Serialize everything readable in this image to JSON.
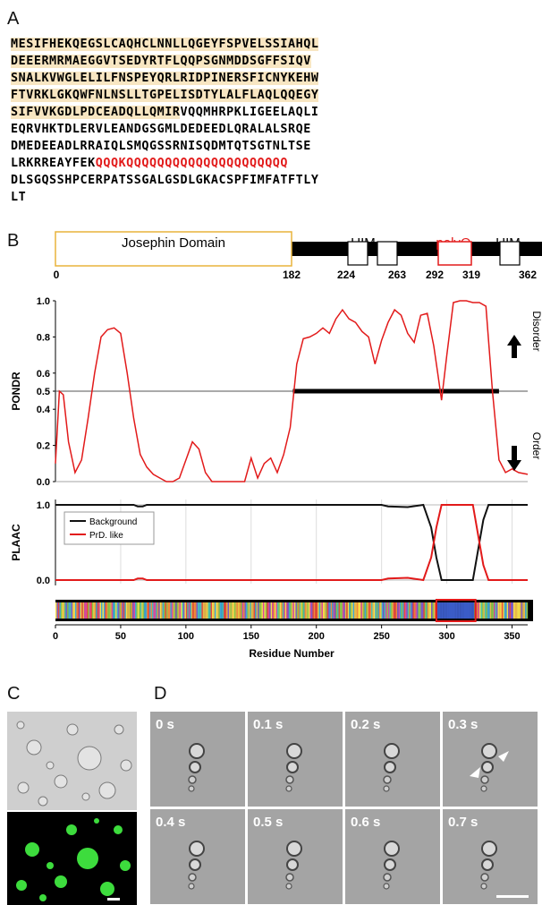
{
  "panels": {
    "a": "A",
    "b": "B",
    "c": "C",
    "d": "D"
  },
  "sequence": [
    {
      "segments": [
        {
          "text": "MESIFHEKQEGSLCAQHCLNNLLQGEYFSPVELSSIAHQL",
          "style": "hl"
        }
      ]
    },
    {
      "segments": [
        {
          "text": "DEEERMRMAEGGVTSEDYRTFLQQPSGNMDDSGFFSIQV",
          "style": "hl"
        }
      ]
    },
    {
      "segments": [
        {
          "text": "SNALKVWGLELILFNSPEYQRLRIDPINERSFICNYKEHW",
          "style": "hl"
        }
      ]
    },
    {
      "segments": [
        {
          "text": "FTVRKLGKQWFNLNSLLTGPELISDTYLALFLAQLQQEGY",
          "style": "hl"
        }
      ]
    },
    {
      "segments": [
        {
          "text": "SIFVVKGDLPDCEADQLLQMIR",
          "style": "hl"
        },
        {
          "text": "VQQMHRPKLIGEELAQLI",
          "style": ""
        }
      ]
    },
    {
      "segments": [
        {
          "text": "EQRVHKTDLERVLEANDGSGMLDEDEEDLQRALALSRQE",
          "style": ""
        }
      ]
    },
    {
      "segments": [
        {
          "text": "DMEDEEADLRRAIQLSMQGSSRNISQDMTQTSGTNLTSE",
          "style": ""
        }
      ]
    },
    {
      "segments": [
        {
          "text": "LRKRREAYFEK",
          "style": ""
        },
        {
          "text": "QQQKQQQQQQQQQQQQQQQQQQQQQ",
          "style": "red"
        }
      ]
    },
    {
      "segments": [
        {
          "text": "DLSGQSSHPCERPATSSGALGSDLGKACSPFIMFATFTLY",
          "style": ""
        }
      ]
    },
    {
      "segments": [
        {
          "text": "LT",
          "style": ""
        }
      ]
    }
  ],
  "domain_map": {
    "josephin_label": "Josephin Domain",
    "uim1_label": "UIM",
    "polyq_label": "polyQ",
    "uim2_label": "UIM",
    "positions": [
      "0",
      "182",
      "224",
      "263",
      "292",
      "319",
      "362"
    ]
  },
  "chart_data": [
    {
      "type": "line",
      "ylabel": "PONDR",
      "ylim": [
        0,
        1
      ],
      "yticks": [
        "0.0",
        "0.2",
        "0.4",
        "0.5",
        "0.6",
        "0.8",
        "1.0"
      ],
      "threshold": 0.5,
      "disorder_segment": [
        182,
        340
      ],
      "annotations": {
        "top": "Disorder",
        "bottom": "Order"
      },
      "series": [
        {
          "values_x": [
            0,
            3,
            6,
            10,
            15,
            20,
            25,
            30,
            35,
            40,
            45,
            50,
            55,
            60,
            65,
            70,
            75,
            80,
            85,
            90,
            95,
            100,
            105,
            110,
            115,
            120,
            125,
            130,
            135,
            140,
            145,
            150,
            155,
            160,
            165,
            170,
            175,
            180,
            185,
            190,
            195,
            200,
            205,
            210,
            215,
            220,
            225,
            230,
            235,
            240,
            245,
            250,
            255,
            260,
            265,
            270,
            275,
            280,
            285,
            290,
            293,
            296,
            300,
            305,
            310,
            315,
            320,
            325,
            330,
            335,
            340,
            345,
            350,
            355,
            362
          ],
          "values_y": [
            0.1,
            0.5,
            0.48,
            0.22,
            0.05,
            0.12,
            0.35,
            0.6,
            0.8,
            0.84,
            0.85,
            0.82,
            0.6,
            0.35,
            0.15,
            0.08,
            0.04,
            0.02,
            0.0,
            0.0,
            0.02,
            0.12,
            0.22,
            0.18,
            0.05,
            0.0,
            0.0,
            0.0,
            0.0,
            0.0,
            0.0,
            0.13,
            0.02,
            0.1,
            0.13,
            0.05,
            0.15,
            0.3,
            0.65,
            0.79,
            0.8,
            0.82,
            0.85,
            0.82,
            0.9,
            0.95,
            0.9,
            0.88,
            0.83,
            0.8,
            0.65,
            0.78,
            0.88,
            0.95,
            0.92,
            0.82,
            0.77,
            0.92,
            0.93,
            0.75,
            0.6,
            0.45,
            0.7,
            0.99,
            1.0,
            1.0,
            0.99,
            0.99,
            0.97,
            0.5,
            0.12,
            0.05,
            0.07,
            0.05,
            0.04
          ]
        }
      ]
    },
    {
      "type": "line",
      "ylabel": "PLAAC",
      "ylim": [
        0,
        1
      ],
      "yticks": [
        "0.0",
        "1.0"
      ],
      "xlabel": "Residue Number",
      "xticks": [
        "0",
        "50",
        "100",
        "150",
        "200",
        "250",
        "300",
        "350"
      ],
      "legend": "top-left",
      "series": [
        {
          "name": "Background",
          "color": "#111111",
          "values_x": [
            0,
            60,
            63,
            67,
            70,
            250,
            255,
            270,
            282,
            288,
            292,
            296,
            300,
            320,
            323,
            328,
            332,
            362
          ],
          "values_y": [
            1.0,
            1.0,
            0.98,
            0.98,
            1.0,
            1.0,
            0.98,
            0.97,
            1.0,
            0.7,
            0.3,
            0.0,
            0.0,
            0.0,
            0.3,
            0.8,
            1.0,
            1.0
          ]
        },
        {
          "name": "PrD. like",
          "color": "#e21a1a",
          "values_x": [
            0,
            60,
            63,
            67,
            70,
            250,
            255,
            270,
            282,
            288,
            292,
            296,
            300,
            320,
            323,
            328,
            332,
            362
          ],
          "values_y": [
            0.0,
            0.0,
            0.02,
            0.02,
            0.0,
            0.0,
            0.02,
            0.03,
            0.0,
            0.3,
            0.7,
            1.0,
            1.0,
            1.0,
            0.7,
            0.2,
            0.0,
            0.0
          ]
        }
      ]
    }
  ],
  "micro_d": [
    "0 s",
    "0.1 s",
    "0.2 s",
    "0.3 s",
    "0.4 s",
    "0.5 s",
    "0.6 s",
    "0.7 s"
  ],
  "colors": {
    "red": "#e21a1a",
    "orange_box": "#e8b43c",
    "highlight": "#f8e6c2"
  }
}
